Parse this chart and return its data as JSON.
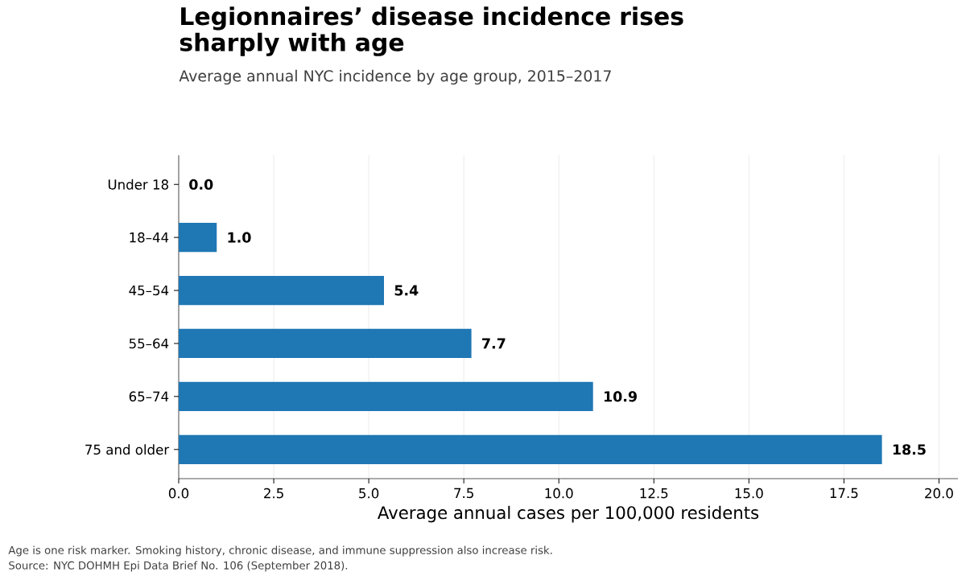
{
  "chart_data": {
    "type": "bar",
    "orientation": "horizontal",
    "title": "Legionnaires’ disease incidence rises sharply with age",
    "subtitle": "Average annual NYC incidence by age group, 2015–2017",
    "xlabel": "Average annual cases per 100,000 residents",
    "categories": [
      "Under 18",
      "18–44",
      "45–54",
      "55–64",
      "65–74",
      "75 and older"
    ],
    "values": [
      0.0,
      1.0,
      5.4,
      7.7,
      10.9,
      18.5
    ],
    "value_labels": [
      "0.0",
      "1.0",
      "5.4",
      "7.7",
      "10.9",
      "18.5"
    ],
    "color": "#1f77b4",
    "xlim": [
      0,
      20.5
    ],
    "xticks": [
      {
        "value": 0,
        "label": "0.0"
      },
      {
        "value": 2.5,
        "label": "2.5"
      },
      {
        "value": 5,
        "label": "5.0"
      },
      {
        "value": 7.5,
        "label": "7.5"
      },
      {
        "value": 10,
        "label": "10.0"
      },
      {
        "value": 12.5,
        "label": "12.5"
      },
      {
        "value": 15,
        "label": "15.0"
      },
      {
        "value": 17.5,
        "label": "17.5"
      },
      {
        "value": 20,
        "label": "20.0"
      }
    ],
    "grid": "x",
    "annotations": [
      "Age is one risk marker. Smoking history, chronic disease, and immune suppression also increase risk.",
      "Source: NYC DOHMH Epi Data Brief No. 106 (September 2018)."
    ]
  }
}
